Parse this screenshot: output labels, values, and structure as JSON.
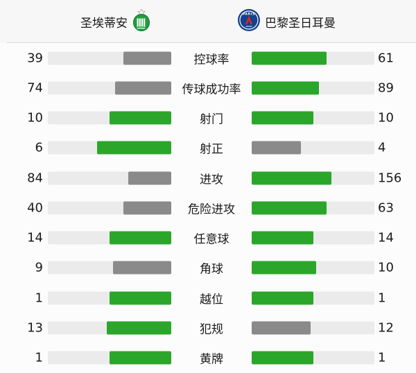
{
  "header": {
    "home_team": "圣埃蒂安",
    "away_team": "巴黎圣日耳曼"
  },
  "icons": {
    "home_logo": "saint-etienne-crest",
    "away_logo": "psg-crest"
  },
  "colors": {
    "win": "#2ba62b",
    "lose": "#8a8a8a",
    "track": "#ebebeb",
    "header_bg": "#f7f7f7",
    "divider": "#d9d9d9",
    "asse_green": "#1f9e3c",
    "psg_blue": "#15418e",
    "psg_red": "#da291c"
  },
  "chart_data": {
    "type": "bar",
    "orientation": "horizontal-paired",
    "legend_position": "top",
    "grid": false,
    "title": "",
    "categories": [
      "控球率",
      "传球成功率",
      "射门",
      "射正",
      "进攻",
      "危险进攻",
      "任意球",
      "角球",
      "越位",
      "犯规",
      "黄牌"
    ],
    "series": [
      {
        "name": "圣埃蒂安",
        "values": [
          39,
          74,
          10,
          6,
          84,
          40,
          14,
          9,
          1,
          13,
          1
        ]
      },
      {
        "name": "巴黎圣日耳曼",
        "values": [
          61,
          89,
          10,
          4,
          156,
          63,
          14,
          10,
          1,
          12,
          1
        ]
      }
    ],
    "value_rule": "bar fill fraction = value / (home value + away value); higher or equal value colored green, lower colored gray"
  }
}
